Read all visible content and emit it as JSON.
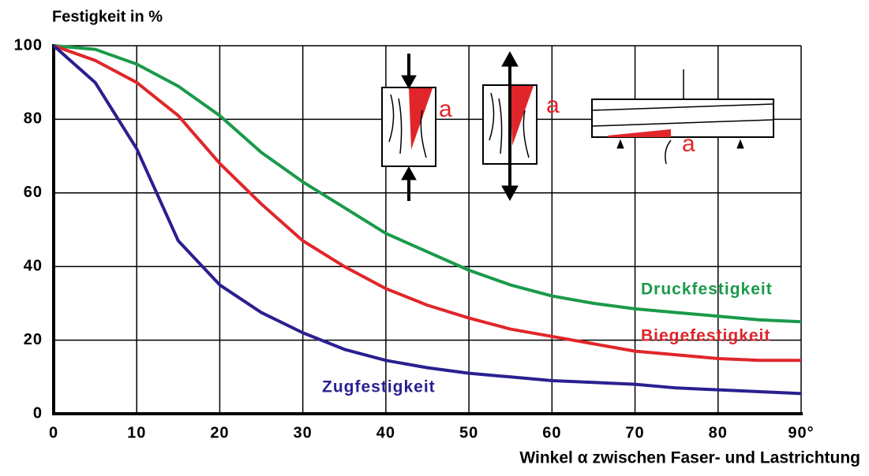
{
  "chart_data": {
    "type": "line",
    "y_label": "Festigkeit in %",
    "x_label": "Winkel α zwischen Faser- und Lastrichtung",
    "x": [
      0,
      5,
      10,
      15,
      20,
      25,
      30,
      35,
      40,
      45,
      50,
      55,
      60,
      65,
      70,
      75,
      80,
      85,
      90
    ],
    "series": [
      {
        "name": "Druckfestigkeit",
        "color": "#1a9a4a",
        "values": [
          100,
          99,
          95,
          89,
          81,
          71,
          63,
          56,
          49,
          44,
          39,
          35,
          32,
          30,
          28.5,
          27.5,
          26.5,
          25.5,
          25
        ]
      },
      {
        "name": "Biegefestigkeit",
        "color": "#e0262a",
        "values": [
          100,
          96,
          90,
          81,
          68,
          57,
          47,
          40,
          34,
          29.5,
          26,
          23,
          21,
          19,
          17,
          16,
          15,
          14.5,
          14.5
        ]
      },
      {
        "name": "Zugfestigkeit",
        "color": "#2a1f8f",
        "values": [
          100,
          90,
          72,
          47,
          35,
          27.5,
          22,
          17.5,
          14.5,
          12.5,
          11,
          10,
          9,
          8.5,
          8,
          7,
          6.5,
          6,
          5.5
        ]
      }
    ],
    "xlim": [
      0,
      90
    ],
    "ylim": [
      0,
      100
    ],
    "xticks": [
      0,
      10,
      20,
      30,
      40,
      50,
      60,
      70,
      80,
      {
        "value": 90,
        "label": "90°"
      }
    ],
    "yticks": [
      0,
      20,
      40,
      60,
      80,
      100
    ],
    "grid": true,
    "inset_labels": [
      "a",
      "a",
      "a"
    ]
  }
}
